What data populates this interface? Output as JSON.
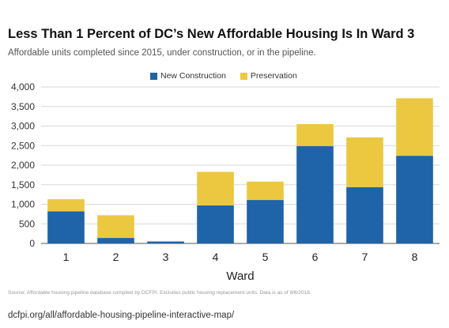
{
  "page": {
    "source_note": "Source: Affordable housing pipeline database compiled by DCFPI. Excludes public housing replacement units. Data is as of 9/6/2018.",
    "url": "dcfpi.org/all/affordable-housing-pipeline-interactive-map/"
  },
  "chart_data": {
    "type": "bar",
    "stacked": true,
    "title": "Less Than 1 Percent of DC’s New Affordable Housing Is In Ward 3",
    "subtitle": "Affordable units completed since 2015, under construction, or in the pipeline.",
    "xlabel": "Ward",
    "ylabel": "",
    "categories": [
      "1",
      "2",
      "3",
      "4",
      "5",
      "6",
      "7",
      "8"
    ],
    "series": [
      {
        "name": "New Construction",
        "color": "#1f63a8",
        "values": [
          820,
          140,
          50,
          970,
          1110,
          2490,
          1440,
          2240
        ]
      },
      {
        "name": "Preservation",
        "color": "#ecc840",
        "values": [
          310,
          580,
          0,
          860,
          470,
          560,
          1270,
          1470
        ]
      }
    ],
    "ylim": [
      0,
      4000
    ],
    "yticks": [
      0,
      500,
      1000,
      1500,
      2000,
      2500,
      3000,
      3500,
      4000
    ],
    "ytick_labels": [
      "0",
      "500",
      "1,000",
      "1,500",
      "2,000",
      "2,500",
      "3,000",
      "3,500",
      "4,000"
    ],
    "grid": true,
    "legend_position": "top-center"
  }
}
